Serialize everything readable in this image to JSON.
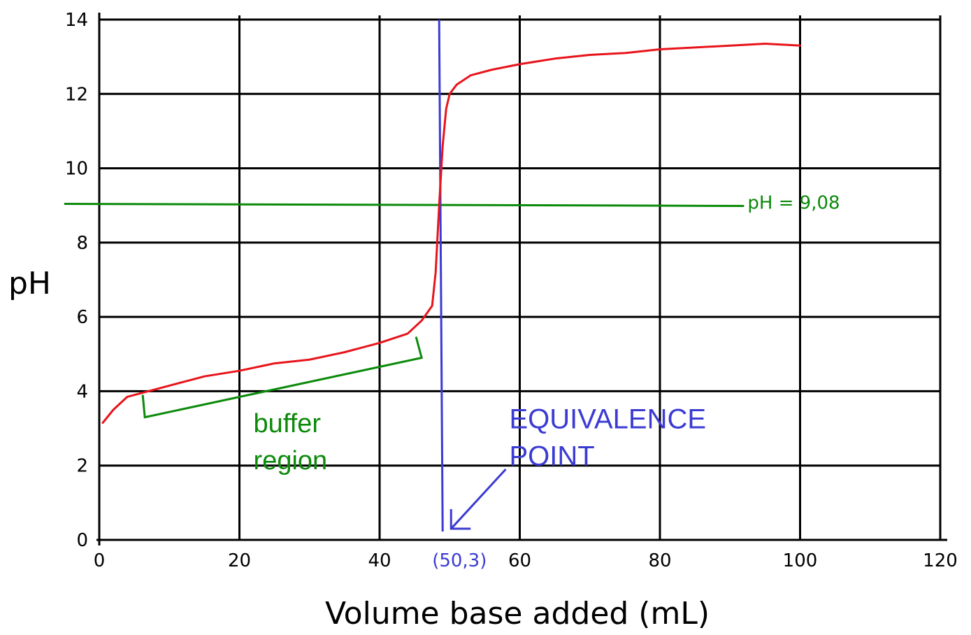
{
  "chart_data": {
    "type": "line",
    "title": "",
    "xlabel": "Volume base added (mL)",
    "ylabel": "pH",
    "xlim": [
      0,
      120
    ],
    "ylim": [
      0,
      14
    ],
    "x_ticks": [
      0,
      20,
      40,
      60,
      80,
      100,
      120
    ],
    "y_ticks": [
      0,
      2,
      4,
      6,
      8,
      10,
      12,
      14
    ],
    "grid": true,
    "series": [
      {
        "color": "#e8141b",
        "x": [
          0.5,
          2,
          4,
          7,
          10,
          15,
          20,
          25,
          30,
          35,
          40,
          44,
          46,
          47.5,
          48,
          48.5,
          49,
          49.5,
          50,
          51,
          53,
          56,
          60,
          65,
          70,
          75,
          80,
          85,
          90,
          95,
          100
        ],
        "y": [
          3.15,
          3.5,
          3.85,
          4.0,
          4.15,
          4.4,
          4.55,
          4.75,
          4.85,
          5.05,
          5.3,
          5.55,
          5.9,
          6.3,
          7.2,
          9.0,
          10.6,
          11.6,
          12.0,
          12.25,
          12.5,
          12.65,
          12.8,
          12.95,
          13.05,
          13.1,
          13.2,
          13.25,
          13.3,
          13.35,
          13.3
        ]
      }
    ],
    "annotations": {
      "ph_line": {
        "y": 9.08,
        "label": "pH = 9,08",
        "color": "#0b8a0b"
      },
      "equivalence": {
        "x": 48.5,
        "label_line1": "EQUIVALENCE",
        "label_line2": "POINT",
        "point_label": "(50,3)",
        "color": "#3b3bd4"
      },
      "buffer": {
        "label_line1": "buffer",
        "label_line2": "region",
        "color": "#0b8a0b"
      }
    }
  }
}
